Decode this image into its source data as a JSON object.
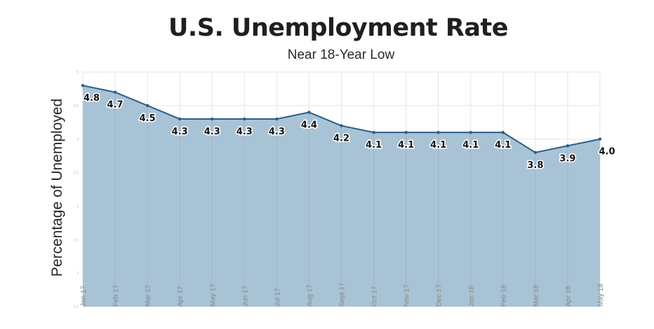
{
  "chart_data": {
    "type": "area",
    "title": "U.S. Unemployment Rate",
    "subtitle": "Near 18-Year Low",
    "ylabel": "Percentage of Unemployed",
    "xlabel": "",
    "categories": [
      "Jan 17",
      "Feb 17",
      "Mar 17",
      "Apr 17",
      "May 17",
      "Jun 17",
      "Jul 17",
      "Aug 17",
      "Sept 17",
      "Oct 17",
      "Nov 17",
      "Dec 17",
      "Jan 18",
      "Feb 18",
      "Mar 18",
      "Apr 18",
      "May 18"
    ],
    "values": [
      4.8,
      4.7,
      4.5,
      4.3,
      4.3,
      4.3,
      4.3,
      4.4,
      4.2,
      4.1,
      4.1,
      4.1,
      4.1,
      4.1,
      3.8,
      3.9,
      4.0
    ],
    "ylim": [
      1.5,
      5.0
    ],
    "yticks": [
      5,
      4.5,
      4,
      3.5,
      3,
      2.5,
      2,
      1.5
    ],
    "grid": true,
    "colors": {
      "fill": "#a9c3d6",
      "line": "#2b5f86",
      "grid": "#e6e6e6",
      "point": "#2b5f86"
    }
  }
}
